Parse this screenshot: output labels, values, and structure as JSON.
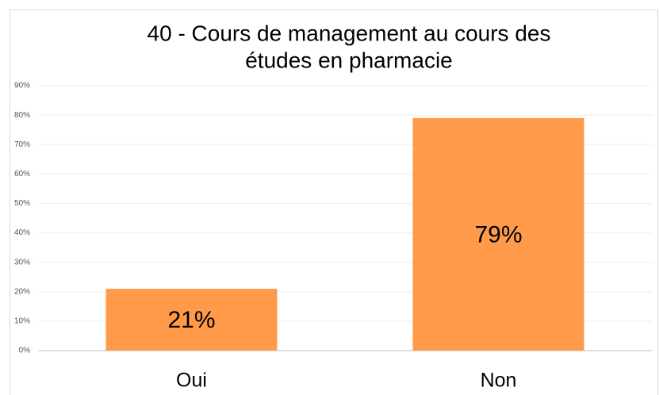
{
  "chart_data": {
    "type": "bar",
    "title": [
      "40 - Cours de management au cours des",
      "études en pharmacie"
    ],
    "categories": [
      "Oui",
      "Non"
    ],
    "values": [
      21,
      79
    ],
    "value_labels": [
      "21%",
      "79%"
    ],
    "color": "#ff9a4a",
    "ylim": [
      0,
      90
    ],
    "yticks": [
      {
        "value": 0,
        "label": "0%"
      },
      {
        "value": 10,
        "label": "10%"
      },
      {
        "value": 20,
        "label": "20%"
      },
      {
        "value": 30,
        "label": "30%"
      },
      {
        "value": 40,
        "label": "40%"
      },
      {
        "value": 50,
        "label": "50%"
      },
      {
        "value": 60,
        "label": "60%"
      },
      {
        "value": 70,
        "label": "70%"
      },
      {
        "value": 80,
        "label": "80%"
      },
      {
        "value": 90,
        "label": "90%"
      }
    ],
    "grid": true
  }
}
